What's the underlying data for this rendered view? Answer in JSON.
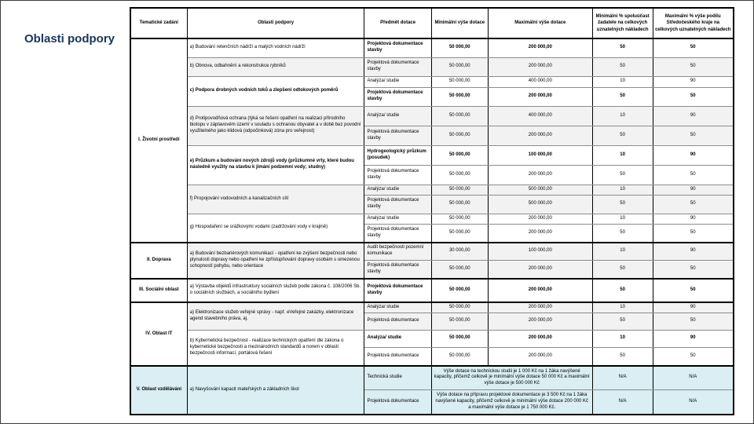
{
  "title": "Oblasti podpory",
  "colors": {
    "title_text": "#17365d",
    "stripe_gray": "#f2f2f2",
    "stripe_blue": "#daeef3",
    "border": "#000000"
  },
  "table": {
    "columns": [
      "Tematické zadání",
      "Oblasti podpory",
      "Předmět dotace",
      "Minimální výše dotace",
      "Maximální výše dotace",
      "Minimální % spoluúčast žadatele na celkových uznatelných nákladech",
      "Maximální % výše podílu Středočeského kraje na celkových uznatelných nákladech"
    ],
    "sections": [
      {
        "label": "I. Životní prostředí",
        "shade": "white",
        "areas": [
          {
            "label": "a) Budování retenčních nádrží a malých vodních nádrží",
            "shade": "white",
            "rows": [
              {
                "predmet": "Projektová dokumentace stavby",
                "min": "50 000,00",
                "max": "200 000,00",
                "sp": "50",
                "podil": "50",
                "bold": true
              }
            ]
          },
          {
            "label": "b) Obnova, odbahnění a rekonstrukce rybníků",
            "shade": "gray",
            "rows": [
              {
                "predmet": "Projektová dokumentace stavby",
                "min": "50 000,00",
                "max": "200 000,00",
                "sp": "50",
                "podil": "50"
              }
            ]
          },
          {
            "label": "c) Podpora drobných vodních toků a zlepšení odtokových poměrů",
            "shade": "white",
            "bold": true,
            "rows": [
              {
                "predmet": "Analýza/ studie",
                "min": "50 000,00",
                "max": "400 000,00",
                "sp": "10",
                "podil": "90"
              },
              {
                "predmet": "Projektová dokumentace stavby",
                "min": "50 000,00",
                "max": "200 000,00",
                "sp": "50",
                "podil": "50",
                "bold": true
              }
            ]
          },
          {
            "label": "d) Protipovodňová ochrana (týká se řešení opatření na realizaci přírodního biotopu v záplavovém území v souladu s ochranou obyvatel a v době bez povodní využitelného jako klidová (odpočinková) zóna pro veřejnost)",
            "shade": "gray",
            "rows": [
              {
                "predmet": "Analýza/ studie",
                "min": "50 000,00",
                "max": "400 000,00",
                "sp": "10",
                "podil": "90"
              },
              {
                "predmet": "Projektová dokumentace stavby",
                "min": "50 000,00",
                "max": "200 000,00",
                "sp": "50",
                "podil": "50"
              }
            ]
          },
          {
            "label": "e) Průzkum a budování nových zdrojů vody (průzkumné vrty, které budou následně využity na stavbu k jímání podzemní vody; studny)",
            "shade": "white",
            "bold": true,
            "rows": [
              {
                "predmet": "Hydrogeologický průzkum (posudek)",
                "min": "50 000,00",
                "max": "100 000,00",
                "sp": "10",
                "podil": "90",
                "bold": true
              },
              {
                "predmet": "Projektová dokumentace stavby",
                "min": "50 000,00",
                "max": "200 000,00",
                "sp": "50",
                "podil": "50"
              }
            ]
          },
          {
            "label": "f) Propojování vodovodních a kanalizačních sítí",
            "shade": "gray",
            "rows": [
              {
                "predmet": "Analýza/ studie",
                "min": "50 000,00",
                "max": "500 000,00",
                "sp": "10",
                "podil": "90"
              },
              {
                "predmet": "Projektová dokumentace stavby",
                "min": "50 000,00",
                "max": "500 000,00",
                "sp": "50",
                "podil": "50"
              }
            ]
          },
          {
            "label": "g) Hospodaření se srážkovými vodami (zadržování vody v krajině)",
            "shade": "white",
            "rows": [
              {
                "predmet": "Analýza/ studie",
                "min": "50 000,00",
                "max": "200 000,00",
                "sp": "10",
                "podil": "90"
              },
              {
                "predmet": "Projektová dokumentace stavby",
                "min": "50 000,00",
                "max": "200 000,00",
                "sp": "50",
                "podil": "50"
              }
            ]
          }
        ]
      },
      {
        "label": "II. Doprava",
        "shade": "white",
        "areas": [
          {
            "label": "a) Budování bezbariérových komunikací - opatření ke zvýšení bezpečnosti nebo plynulosti dopravy nebo opatření ke zpřístupňování dopravy osobám s omezenou schopností pohybu, nebo orientace",
            "shade": "gray",
            "rows": [
              {
                "predmet": "Audit bezpečnosti pozemní komunikace",
                "min": "30 000,00",
                "max": "100 000,00",
                "sp": "10",
                "podil": "90"
              },
              {
                "predmet": "Projektová dokumentace stavby",
                "min": "50 000,00",
                "max": "200 000,00",
                "sp": "50",
                "podil": "50"
              }
            ]
          }
        ]
      },
      {
        "label": "III. Sociální oblast",
        "shade": "white",
        "areas": [
          {
            "label": "a) Výstavba objektů infrastruktury sociálních služeb podle zákona č. 108/2006 Sb. o sociálních službách, a sociálního bydlení",
            "shade": "white",
            "rows": [
              {
                "predmet": "Projektová dokumentace stavby",
                "min": "50 000,00",
                "max": "200 000,00",
                "sp": "50",
                "podil": "50",
                "bold": true
              }
            ]
          }
        ]
      },
      {
        "label": "IV. Oblast IT",
        "shade": "white",
        "areas": [
          {
            "label": "a) Elektronizace služeb veřejné správy - např. eVeřejné zakázky, elektronizace agend stavebního práva, aj.",
            "shade": "gray",
            "rows": [
              {
                "predmet": "Analýza/ studie",
                "min": "50 000,00",
                "max": "200 000,00",
                "sp": "10",
                "podil": "90"
              },
              {
                "predmet": "Projektová dokumentace",
                "min": "50 000,00",
                "max": "200 000,00",
                "sp": "50",
                "podil": "50"
              }
            ]
          },
          {
            "label": "b) Kybernetická bezpečnost - realizace technických opatření dle zákona o kybernetické bezpečnosti a mezinárodních standardů a norem v oblasti bezpečnosti informací, portálová řešení",
            "shade": "white",
            "rows": [
              {
                "predmet": "Analýza/ studie",
                "min": "50 000,00",
                "max": "200 000,00",
                "sp": "10",
                "podil": "90",
                "bold": true
              },
              {
                "predmet": "Projektová dokumentace",
                "min": "50 000,00",
                "max": "200 000,00",
                "sp": "50",
                "podil": "50"
              }
            ]
          }
        ]
      },
      {
        "label": "V. Oblast vzdělávání",
        "shade": "blue",
        "areas": [
          {
            "label": "a) Navyšování kapacit mateřských a základních škol",
            "shade": "blue",
            "rows": [
              {
                "predmet": "Technická studie",
                "note": "Výše dotace na technickou studii je 1 000 Kč na 1 žáka navýšené kapacity, přičemž celkově je minimální výše dotace 50 000 Kč a maximální výše dotace je 500 000 Kč",
                "sp": "N/A",
                "podil": "N/A"
              },
              {
                "predmet": "Projektová dokumentace",
                "note": "Výše dotace na přípravu projektové dokumentace je 3 500 Kč na 1 žáka navýšené kapacity, přičemž celkově je minimální výše dotace 200 000 Kč a maximální výše dotace je 1 750 000 Kč.",
                "sp": "N/A",
                "podil": "N/A"
              }
            ]
          }
        ]
      }
    ]
  }
}
